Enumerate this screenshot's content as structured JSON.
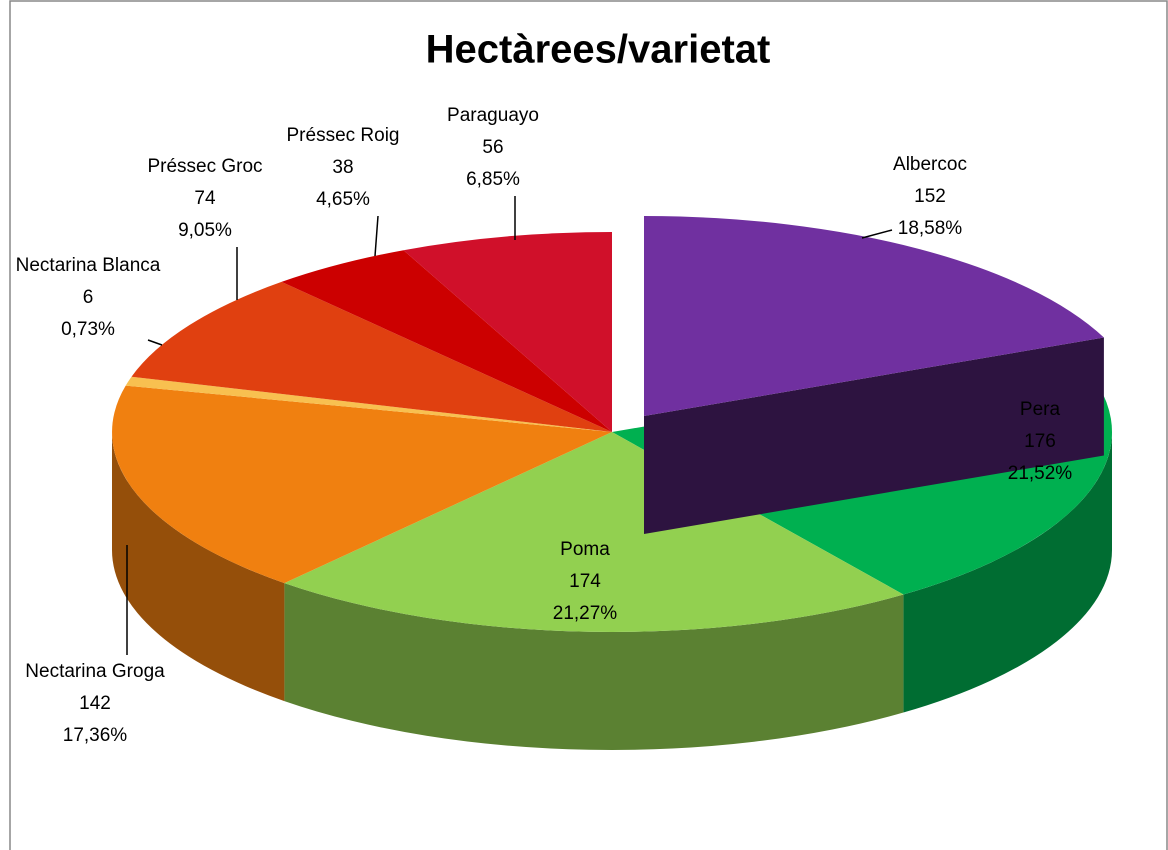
{
  "chart_data": {
    "type": "pie3d",
    "title": "Hectàrees/varietat",
    "categories": [
      "Albercoc",
      "Pera",
      "Poma",
      "Nectarina Groga",
      "Nectarina Blanca",
      "Préssec Groc",
      "Préssec Roig",
      "Paraguayo"
    ],
    "values": [
      152,
      176,
      174,
      142,
      6,
      74,
      38,
      56
    ],
    "percent_labels": [
      "18,58%",
      "21,52%",
      "21,27%",
      "17,36%",
      "0,73%",
      "9,05%",
      "4,65%",
      "6,85%"
    ],
    "colors": [
      "#7030a0",
      "#00b050",
      "#92d050",
      "#f08010",
      "#f8c050",
      "#e04010",
      "#cc0000",
      "#d0102a"
    ],
    "exploded": [
      "Albercoc"
    ]
  }
}
